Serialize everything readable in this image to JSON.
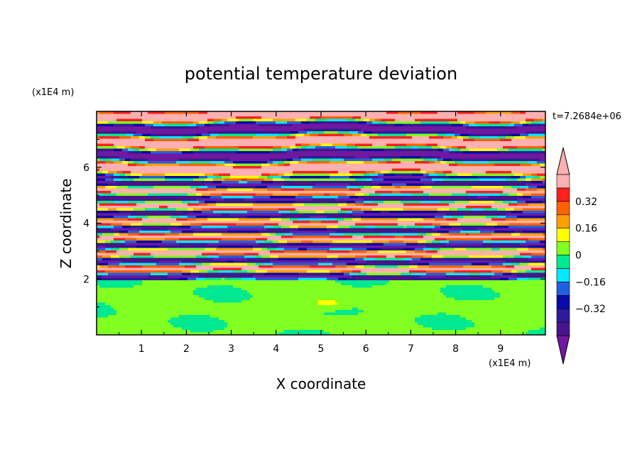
{
  "chart_data": {
    "type": "heatmap",
    "title": "potential temperature deviation",
    "xlabel": "X coordinate",
    "ylabel": "Z coordinate",
    "x_unit": "(x1E4 m)",
    "y_unit": "(x1E4 m)",
    "time_label": "t=7.2684e+06",
    "xlim": [
      0,
      10
    ],
    "ylim": [
      0,
      8
    ],
    "x_ticks": [
      1,
      2,
      3,
      4,
      5,
      6,
      7,
      8,
      9
    ],
    "y_ticks": [
      2,
      4,
      6
    ],
    "x_tick_labels": [
      "1",
      "2",
      "3",
      "4",
      "5",
      "6",
      "7",
      "8",
      "9"
    ],
    "y_tick_labels": [
      "2",
      "4",
      "6"
    ],
    "grid": false,
    "colorbar": {
      "levels": [
        -0.48,
        -0.4,
        -0.32,
        -0.24,
        -0.16,
        -0.08,
        0,
        0.08,
        0.16,
        0.24,
        0.32,
        0.4,
        0.48
      ],
      "colors": [
        "#4a148c",
        "#2e1a9a",
        "#0a0aa8",
        "#2060e0",
        "#00e8ff",
        "#00e890",
        "#80ff20",
        "#ffff00",
        "#ffa000",
        "#ff6000",
        "#ff2020",
        "#ffb0b0"
      ],
      "under_color": "#7018a0",
      "over_color": "#ffb0b0",
      "labels": [
        {
          "value": -0.32,
          "text": "−0.32"
        },
        {
          "value": -0.16,
          "text": "−0.16"
        },
        {
          "value": 0,
          "text": "0"
        },
        {
          "value": 0.16,
          "text": "0.16"
        },
        {
          "value": 0.32,
          "text": "0.32"
        }
      ]
    },
    "field": {
      "description_layers": [
        {
          "z_range": [
            0,
            1.95
          ],
          "value_range": [
            -0.06,
            0.1
          ]
        },
        {
          "z_range": [
            1.95,
            5.6
          ],
          "value_range": [
            -0.5,
            0.5
          ]
        },
        {
          "z_range": [
            5.6,
            8
          ],
          "value_range": [
            -0.6,
            0.6
          ]
        }
      ]
    }
  }
}
